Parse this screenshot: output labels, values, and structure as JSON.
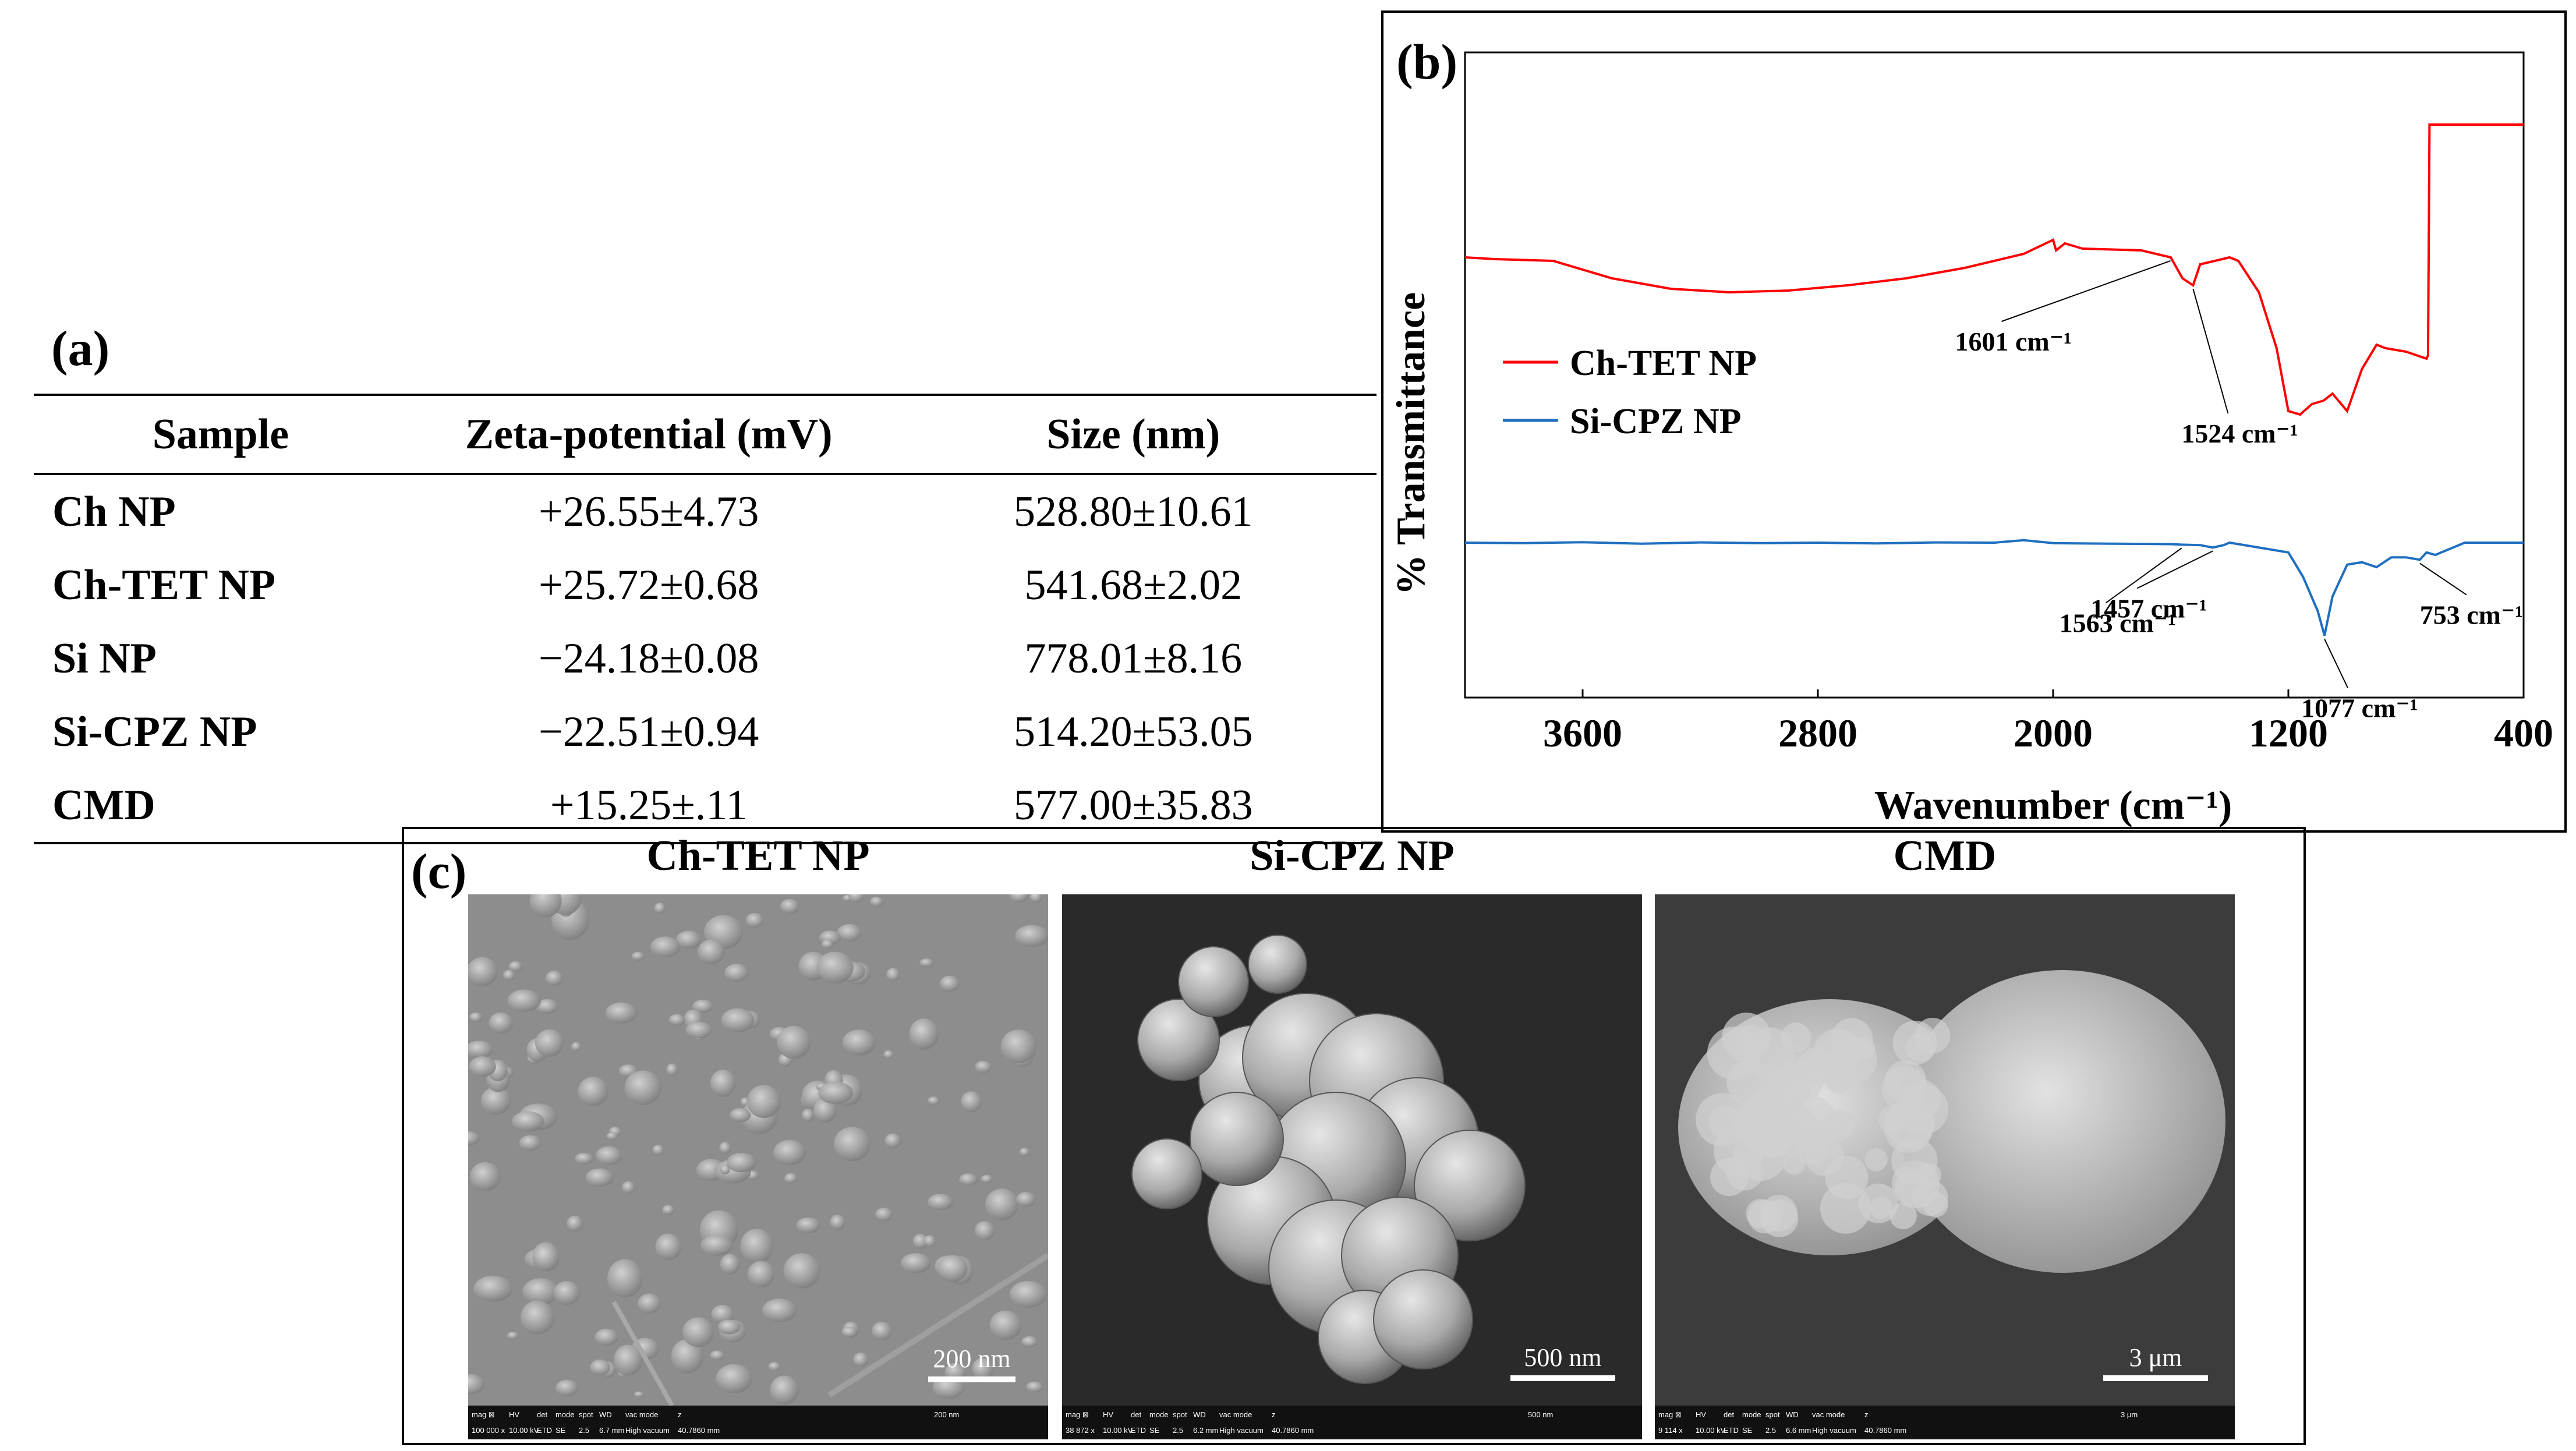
{
  "panel_a": {
    "label": "(a)",
    "headers": [
      "Sample",
      "Zeta-potential (mV)",
      "Size (nm)"
    ],
    "rows": [
      {
        "sample": "Ch NP",
        "zeta": "+26.55±4.73",
        "size": "528.80±10.61"
      },
      {
        "sample": "Ch-TET NP",
        "zeta": "+25.72±0.68",
        "size": "541.68±2.02"
      },
      {
        "sample": "Si NP",
        "zeta": "−24.18±0.08",
        "size": "778.01±8.16"
      },
      {
        "sample": "Si-CPZ NP",
        "zeta": "−22.51±0.94",
        "size": "514.20±53.05"
      },
      {
        "sample": "CMD",
        "zeta": "+15.25±.11",
        "size": "577.00±35.83"
      }
    ]
  },
  "panel_b": {
    "label": "(b)"
  },
  "chart_data": {
    "type": "line",
    "xlabel": "Wavenumber (cm⁻¹)",
    "ylabel": "% Transmittance",
    "xlim": [
      4000,
      400
    ],
    "x_reversed": true,
    "x_ticks": [
      3600,
      2800,
      2000,
      1200,
      400
    ],
    "y_ticks": [],
    "legend_position": "left",
    "series": [
      {
        "name": "Ch-TET NP",
        "color": "#ff0000",
        "x": [
          4000,
          3900,
          3700,
          3500,
          3300,
          3100,
          2900,
          2700,
          2500,
          2300,
          2100,
          2000,
          1990,
          1960,
          1920,
          1900,
          1700,
          1600,
          1560,
          1524,
          1500,
          1400,
          1370,
          1300,
          1240,
          1200,
          1160,
          1120,
          1080,
          1050,
          1000,
          950,
          900,
          870,
          800,
          730,
          725,
          720,
          600,
          400
        ],
        "y": [
          50,
          49.5,
          49,
          44,
          41,
          40,
          40.5,
          42,
          44,
          47,
          51,
          55,
          52,
          54,
          53,
          52.5,
          52,
          50,
          44,
          42,
          48,
          50,
          49,
          40,
          24,
          6,
          5,
          8,
          9,
          11,
          6,
          18,
          25,
          24,
          23,
          21,
          22,
          88,
          88,
          88
        ]
      },
      {
        "name": "Si-CPZ NP",
        "color": "#1f6fc0",
        "x": [
          4000,
          3800,
          3600,
          3400,
          3200,
          3000,
          2800,
          2600,
          2400,
          2200,
          2100,
          2000,
          1800,
          1600,
          1563,
          1500,
          1457,
          1420,
          1400,
          1300,
          1200,
          1150,
          1100,
          1077,
          1050,
          1000,
          950,
          900,
          850,
          800,
          753,
          730,
          700,
          600,
          400
        ],
        "y": [
          50,
          49.8,
          50.2,
          49.6,
          50.1,
          49.8,
          50,
          49.7,
          50.1,
          50,
          51,
          49.8,
          49.6,
          49.4,
          49.2,
          49,
          48,
          49,
          50,
          48,
          46,
          36,
          22,
          12,
          28,
          41,
          42,
          40,
          44,
          44,
          43,
          46,
          45,
          50,
          50
        ]
      }
    ],
    "annotations": [
      {
        "series": "Ch-TET NP",
        "text": "1601 cm⁻¹",
        "x": 1601
      },
      {
        "series": "Ch-TET NP",
        "text": "1524 cm⁻¹",
        "x": 1524
      },
      {
        "series": "Si-CPZ NP",
        "text": "1563 cm⁻¹",
        "x": 1563
      },
      {
        "series": "Si-CPZ NP",
        "text": "1457 cm⁻¹",
        "x": 1457
      },
      {
        "series": "Si-CPZ NP",
        "text": "1077 cm⁻¹",
        "x": 1077
      },
      {
        "series": "Si-CPZ NP",
        "text": "753 cm⁻¹",
        "x": 753
      }
    ]
  },
  "panel_c": {
    "label": "(c)",
    "images": [
      {
        "title": "Ch-TET NP",
        "scale_bar": "200 nm",
        "info": [
          "mag ⊠",
          "HV",
          "det",
          "mode",
          "spot",
          "WD",
          "vac mode",
          "z",
          "200 nm",
          "100 000 x",
          "10.00 kV",
          "ETD",
          "SE",
          "2.5",
          "6.7 mm",
          "High vacuum",
          "40.7860 mm"
        ]
      },
      {
        "title": "Si-CPZ NP",
        "scale_bar": "500 nm",
        "info": [
          "mag ⊠",
          "HV",
          "det",
          "mode",
          "spot",
          "WD",
          "vac mode",
          "z",
          "500 nm",
          "38 872 x",
          "10.00 kV",
          "ETD",
          "SE",
          "2.5",
          "6.2 mm",
          "High vacuum",
          "40.7860 mm"
        ]
      },
      {
        "title": "CMD",
        "scale_bar": "3 μm",
        "info": [
          "mag ⊠",
          "HV",
          "det",
          "mode",
          "spot",
          "WD",
          "vac mode",
          "z",
          "3 μm",
          "9 114 x",
          "10.00 kV",
          "ETD",
          "SE",
          "2.5",
          "6.6 mm",
          "High vacuum",
          "40.7860 mm"
        ]
      }
    ]
  }
}
